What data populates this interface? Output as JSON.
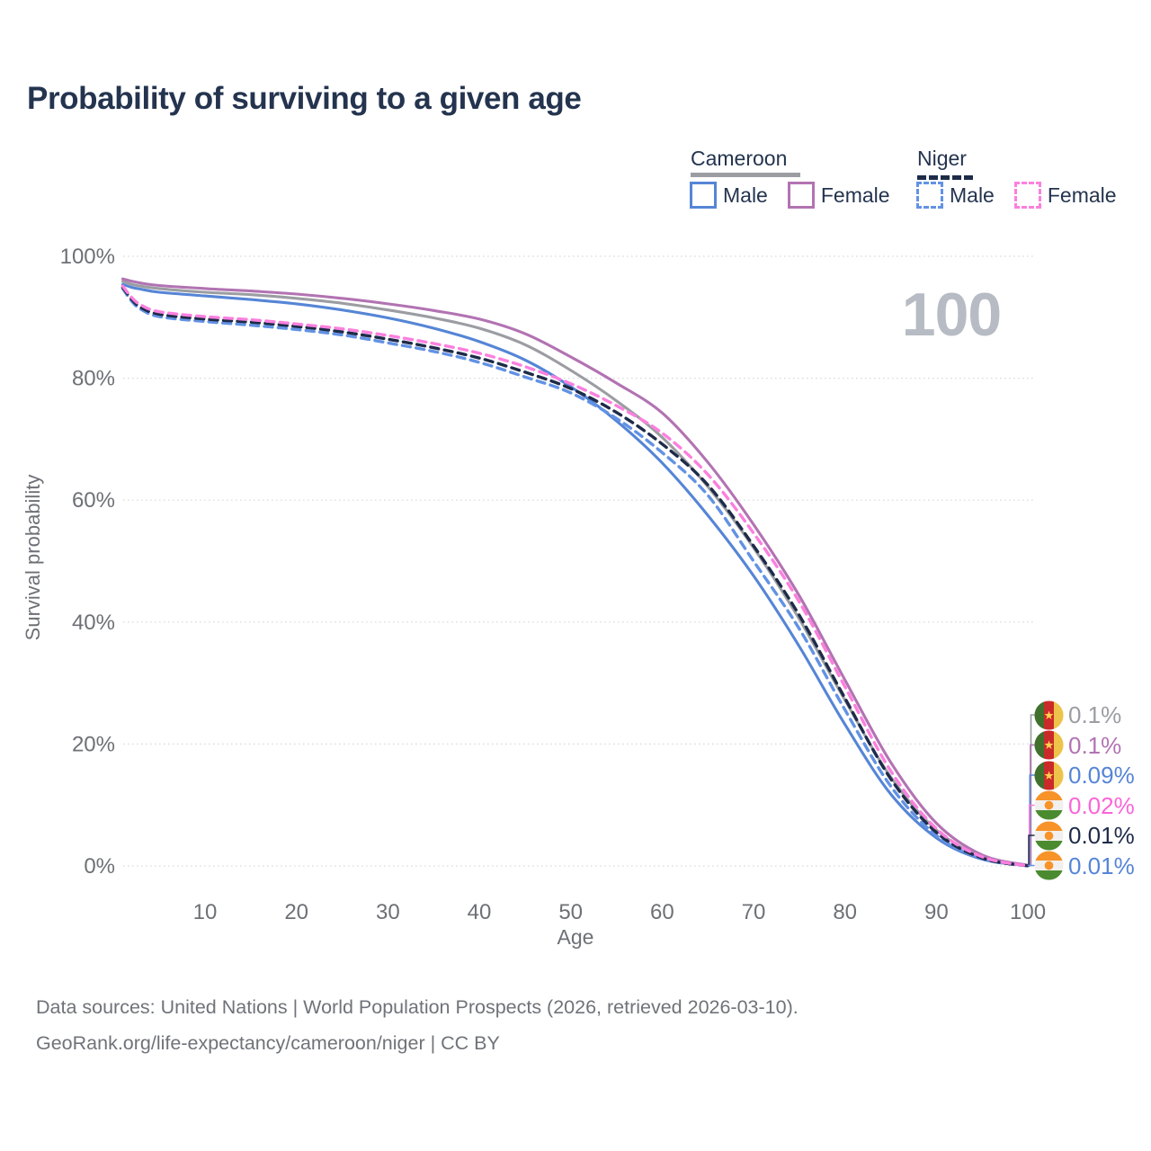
{
  "title": "Probability of surviving to a given age",
  "watermark": "100",
  "legend": {
    "groups": [
      {
        "label": "Cameroon",
        "line_style": "solid",
        "line_color": "#9b9da2",
        "items": [
          {
            "label": "Male",
            "color": "#5585d6"
          },
          {
            "label": "Female",
            "color": "#b273b2"
          }
        ]
      },
      {
        "label": "Niger",
        "line_style": "dashed",
        "line_color": "#1e2b49",
        "items": [
          {
            "label": "Male",
            "color": "#6292e4"
          },
          {
            "label": "Female",
            "color": "#fb80de"
          }
        ]
      }
    ]
  },
  "chart_data": {
    "type": "line",
    "title": "Probability of surviving to a given age",
    "xlabel": "Age",
    "ylabel": "Survival probability",
    "xlim": [
      0,
      105
    ],
    "ylim": [
      0,
      100
    ],
    "grid": "horizontal-dotted",
    "legend_position": "top-right",
    "x_ticks": [
      10,
      20,
      30,
      40,
      50,
      60,
      70,
      80,
      90,
      100
    ],
    "y_ticks": [
      {
        "value": 0,
        "label": "0%"
      },
      {
        "value": 20,
        "label": "20%"
      },
      {
        "value": 40,
        "label": "40%"
      },
      {
        "value": 60,
        "label": "60%"
      },
      {
        "value": 80,
        "label": "80%"
      },
      {
        "value": 100,
        "label": "100%"
      }
    ],
    "x": [
      1,
      2,
      3,
      5,
      10,
      15,
      20,
      25,
      30,
      35,
      40,
      45,
      50,
      55,
      60,
      65,
      70,
      75,
      80,
      85,
      90,
      95,
      100
    ],
    "series": [
      {
        "name": "Cameroon Both sexes",
        "color": "#9b9da2",
        "dash": false,
        "end_label": "0.1%",
        "values": [
          95.9,
          95.4,
          95.1,
          94.7,
          94.1,
          93.7,
          93.1,
          92.3,
          91.2,
          89.9,
          88.2,
          85.5,
          81.3,
          76.3,
          70.3,
          62.2,
          52.2,
          40.5,
          27.2,
          14.6,
          5.9,
          1.5,
          0.1
        ]
      },
      {
        "name": "Cameroon Female",
        "color": "#b273b2",
        "dash": false,
        "end_label": "0.1%",
        "values": [
          96.3,
          95.9,
          95.6,
          95.2,
          94.7,
          94.3,
          93.8,
          93.1,
          92.2,
          91.1,
          89.7,
          87.3,
          83.5,
          79.2,
          74.3,
          66.2,
          56.0,
          44.3,
          30.5,
          17.0,
          7.0,
          1.8,
          0.1
        ]
      },
      {
        "name": "Cameroon Male",
        "color": "#5585d6",
        "dash": false,
        "end_label": "0.09%",
        "values": [
          95.4,
          94.9,
          94.6,
          94.1,
          93.5,
          92.9,
          92.2,
          91.2,
          89.9,
          88.2,
          86.0,
          83.0,
          78.6,
          73.0,
          66.1,
          57.5,
          47.6,
          36.0,
          23.2,
          11.8,
          4.6,
          1.1,
          0.09
        ]
      },
      {
        "name": "Niger Female",
        "color": "#fb80de",
        "dash": true,
        "end_label": "0.02%",
        "values": [
          95.1,
          93.2,
          92.0,
          90.9,
          90.1,
          89.6,
          88.9,
          88.1,
          87.0,
          85.7,
          84.1,
          81.9,
          79.1,
          75.5,
          71.0,
          64.2,
          54.6,
          43.3,
          29.4,
          15.6,
          6.1,
          1.5,
          0.02
        ]
      },
      {
        "name": "Niger Both sexes",
        "color": "#1e2b49",
        "dash": true,
        "end_label": "0.01%",
        "values": [
          94.9,
          92.9,
          91.6,
          90.5,
          89.7,
          89.2,
          88.5,
          87.6,
          86.4,
          85.0,
          83.3,
          81.0,
          78.3,
          74.4,
          69.2,
          62.5,
          52.5,
          41.1,
          27.5,
          14.3,
          5.5,
          1.3,
          0.01
        ]
      },
      {
        "name": "Niger Male",
        "color": "#6292e4",
        "dash": true,
        "end_label": "0.01%",
        "values": [
          94.7,
          92.6,
          91.3,
          90.1,
          89.3,
          88.7,
          88.0,
          87.1,
          85.8,
          84.4,
          82.6,
          80.2,
          77.6,
          73.4,
          67.8,
          60.8,
          50.0,
          38.9,
          25.6,
          13.1,
          5.0,
          1.2,
          0.01
        ]
      }
    ]
  },
  "end_labels": [
    {
      "flag": "cameroon",
      "value": "0.1%",
      "color": "#9b9da2"
    },
    {
      "flag": "cameroon",
      "value": "0.1%",
      "color": "#b273b2"
    },
    {
      "flag": "cameroon",
      "value": "0.09%",
      "color": "#5585d6"
    },
    {
      "flag": "niger",
      "value": "0.02%",
      "color": "#fc64d8"
    },
    {
      "flag": "niger",
      "value": "0.01%",
      "color": "#1e2b49"
    },
    {
      "flag": "niger",
      "value": "0.01%",
      "color": "#5585d6"
    }
  ],
  "footer": {
    "line1": "Data sources: United Nations | World Population Prospects (2026, retrieved 2026-03-10).",
    "line2": "GeoRank.org/life-expectancy/cameroon/niger | CC BY"
  }
}
